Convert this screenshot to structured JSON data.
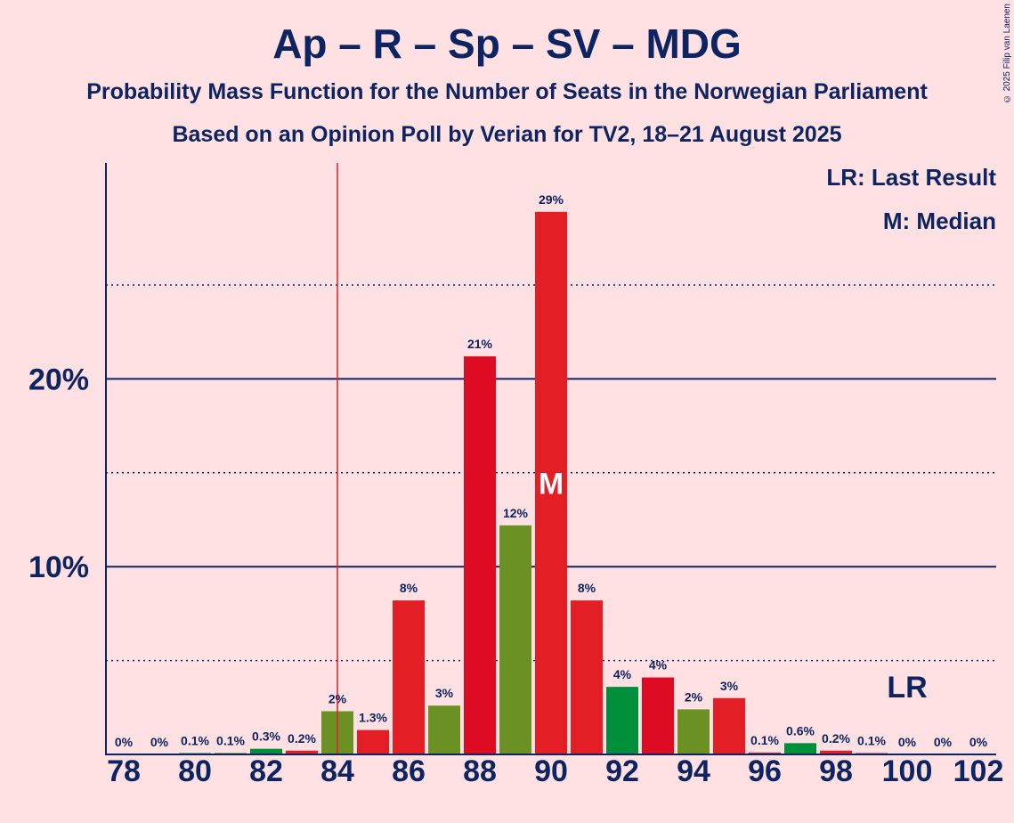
{
  "title": "Ap – R – Sp – SV – MDG",
  "subtitle1": "Probability Mass Function for the Number of Seats in the Norwegian Parliament",
  "subtitle2": "Based on an Opinion Poll by Verian for TV2, 18–21 August 2025",
  "copyright": "© 2025 Filip van Laenen",
  "legend": {
    "last_result": "LR: Last Result",
    "median": "M: Median"
  },
  "colors": {
    "background": "#FFE1E3",
    "text": "#0C2461",
    "red": "#E31E24",
    "green": "#008F3A",
    "olive": "#6B9125",
    "crimson": "#DD0C22",
    "lr_line": "#E31E24"
  },
  "chart_data": {
    "type": "bar",
    "title": "Ap – R – Sp – SV – MDG",
    "xlabel": "",
    "ylabel": "",
    "ylim": [
      0,
      31.5
    ],
    "x_ticks": [
      "78",
      "80",
      "82",
      "84",
      "86",
      "88",
      "90",
      "92",
      "94",
      "96",
      "98",
      "100",
      "102"
    ],
    "y_ticks": [
      {
        "value": 10,
        "label": "10%"
      },
      {
        "value": 20,
        "label": "20%"
      }
    ],
    "dotted_gridlines": [
      5,
      15,
      25
    ],
    "seats": [
      78,
      79,
      80,
      81,
      82,
      83,
      84,
      85,
      86,
      87,
      88,
      89,
      90,
      91,
      92,
      93,
      94,
      95,
      96,
      97,
      98,
      99,
      100,
      101,
      102
    ],
    "values": [
      0,
      0,
      0.05,
      0.08,
      0.3,
      0.2,
      2.3,
      1.3,
      8.2,
      2.6,
      21.2,
      12.2,
      28.9,
      8.2,
      3.6,
      4.1,
      2.4,
      3.0,
      0.1,
      0.6,
      0.2,
      0.05,
      0,
      0,
      0
    ],
    "labels": [
      "0%",
      "0%",
      "0.1%",
      "0.1%",
      "0.3%",
      "0.2%",
      "2%",
      "1.3%",
      "8%",
      "3%",
      "21%",
      "12%",
      "29%",
      "8%",
      "4%",
      "4%",
      "2%",
      "3%",
      "0.1%",
      "0.6%",
      "0.2%",
      "0.1%",
      "0%",
      "0%",
      "0%"
    ],
    "bar_colors": [
      "red",
      "red",
      "green",
      "olive",
      "green",
      "red",
      "olive",
      "red",
      "red",
      "olive",
      "crimson",
      "olive",
      "red",
      "red",
      "green",
      "crimson",
      "olive",
      "red",
      "red",
      "green",
      "red",
      "red",
      "red",
      "red",
      "red"
    ],
    "median_seat": 90,
    "median_marker": "M",
    "last_result_seat": 84.5,
    "last_result_marker": "LR",
    "last_result_marker_seat": 100.5
  }
}
